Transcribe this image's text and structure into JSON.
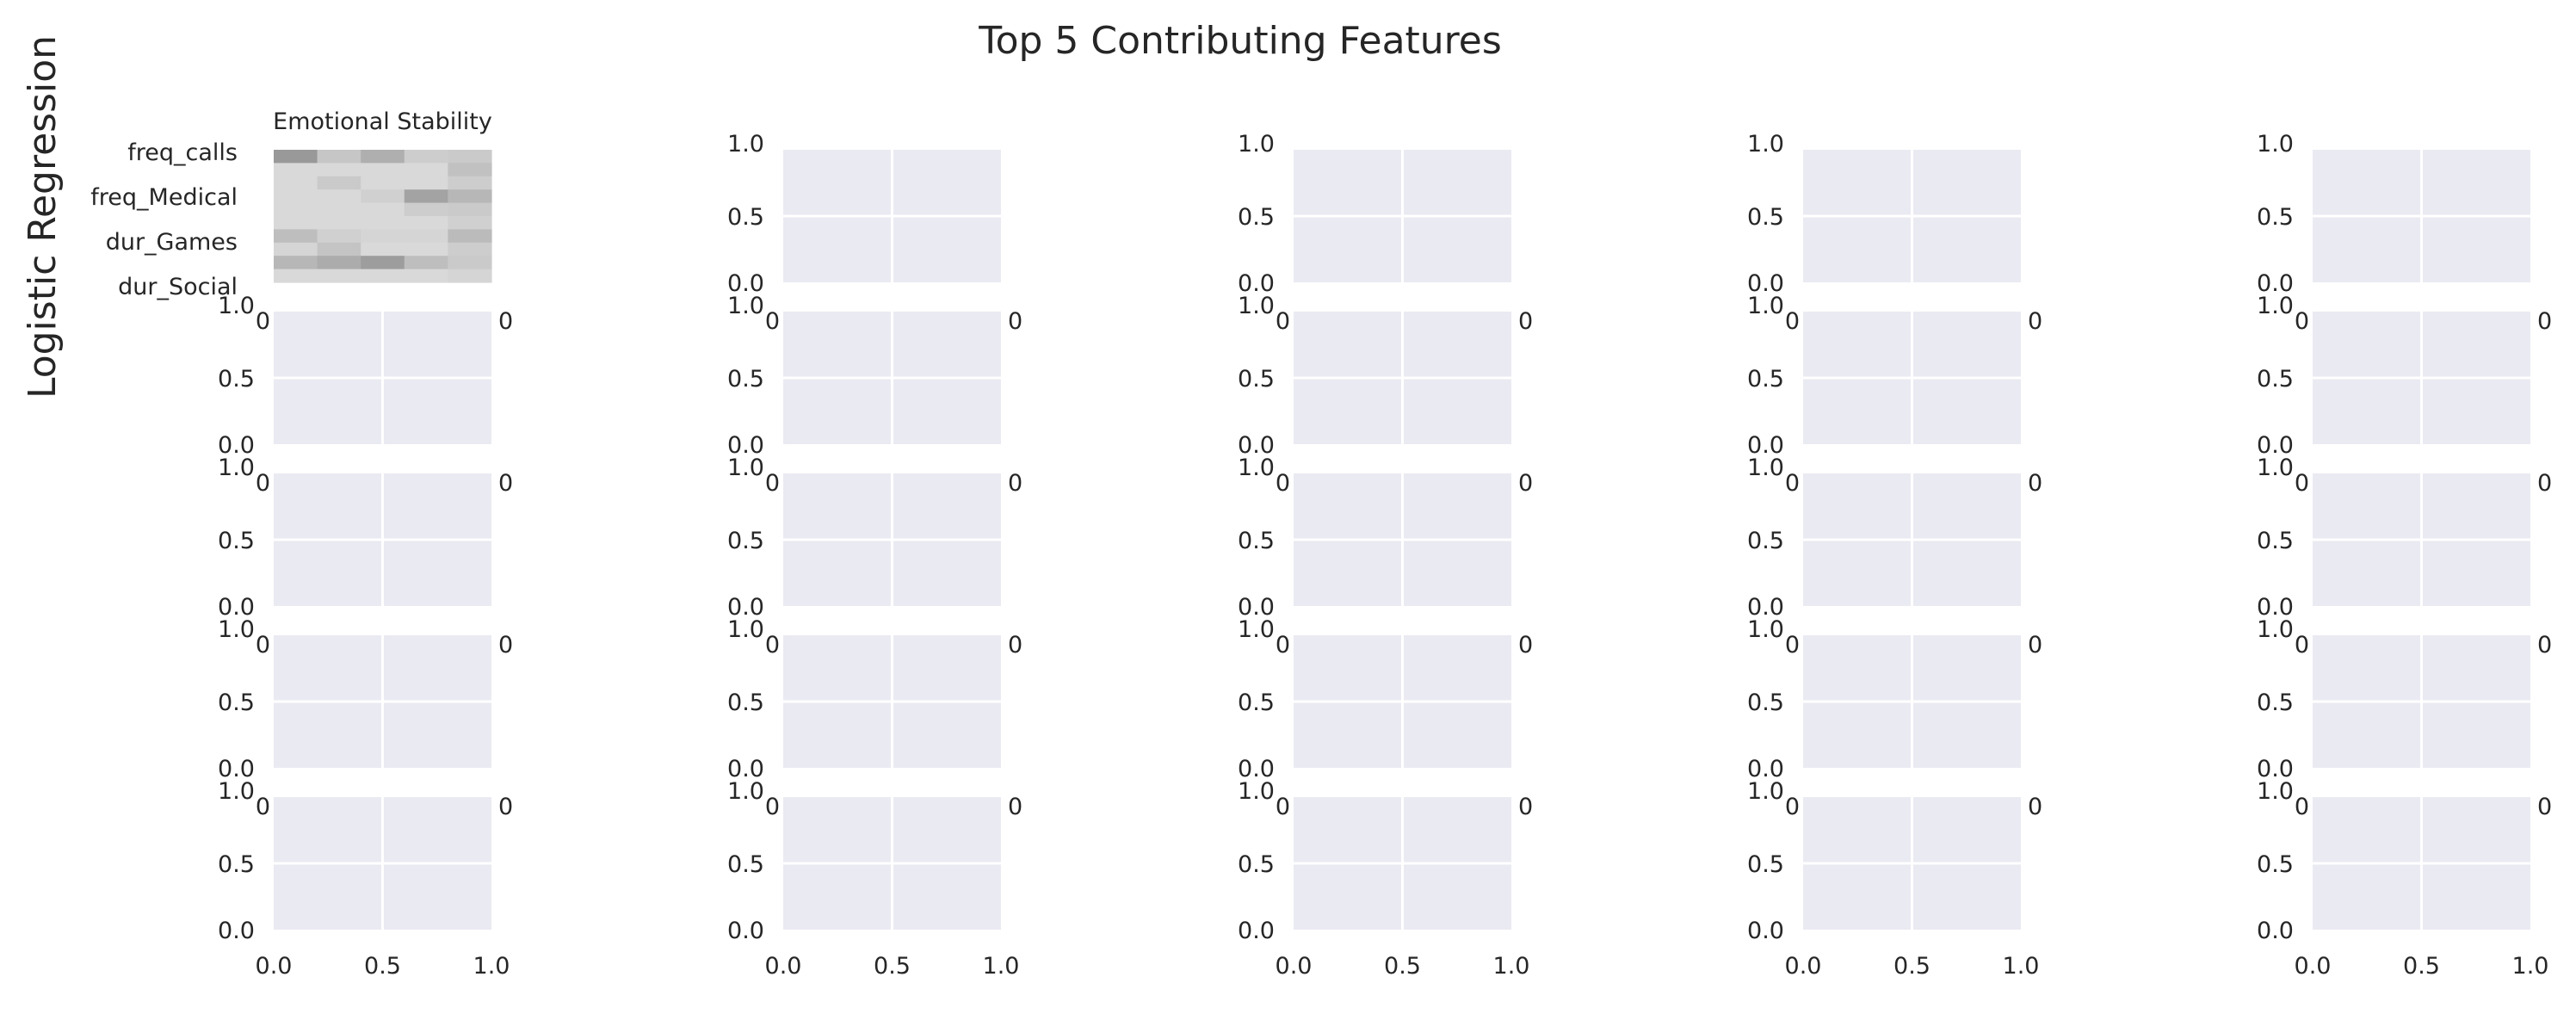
{
  "figure": {
    "title": "Top 5 Contributing Features",
    "row_label": "Logistic Regression"
  },
  "theme": {
    "panel_background": "#eaeaf2",
    "grid_color": "#ffffff",
    "text_color": "#262626",
    "heatmap_colormap": "greys"
  },
  "chart_data": [
    {
      "type": "heatmap",
      "panel": "row 1, column 1",
      "title": "Emotional Stability",
      "y_tick_labels": [
        "freq_calls",
        "freq_Medical",
        "dur_Games",
        "dur_Social"
      ],
      "x_tick_labels": [],
      "grid": false,
      "cells": [
        [
          0.55,
          0.25,
          0.4,
          0.2,
          0.22
        ],
        [
          0.12,
          0.12,
          0.12,
          0.12,
          0.28
        ],
        [
          0.12,
          0.22,
          0.12,
          0.12,
          0.2
        ],
        [
          0.12,
          0.12,
          0.18,
          0.48,
          0.35
        ],
        [
          0.12,
          0.12,
          0.12,
          0.2,
          0.22
        ],
        [
          0.12,
          0.12,
          0.12,
          0.12,
          0.18
        ],
        [
          0.3,
          0.18,
          0.15,
          0.15,
          0.32
        ],
        [
          0.15,
          0.26,
          0.12,
          0.12,
          0.2
        ],
        [
          0.35,
          0.42,
          0.52,
          0.3,
          0.22
        ],
        [
          0.12,
          0.12,
          0.12,
          0.12,
          0.15
        ]
      ]
    },
    {
      "type": "empty_axes",
      "panels": "all remaining panels (5 rows × 5 columns grid)",
      "grid": true,
      "xlim": [
        0.0,
        1.0
      ],
      "ylim": [
        0.0,
        1.0
      ],
      "x_ticks": [
        "0.0",
        "0.5",
        "1.0"
      ],
      "y_ticks": [
        "0.0",
        "0.5",
        "1.0"
      ],
      "truncated_x_tick_left": "0",
      "truncated_x_tick_right": "0"
    }
  ]
}
